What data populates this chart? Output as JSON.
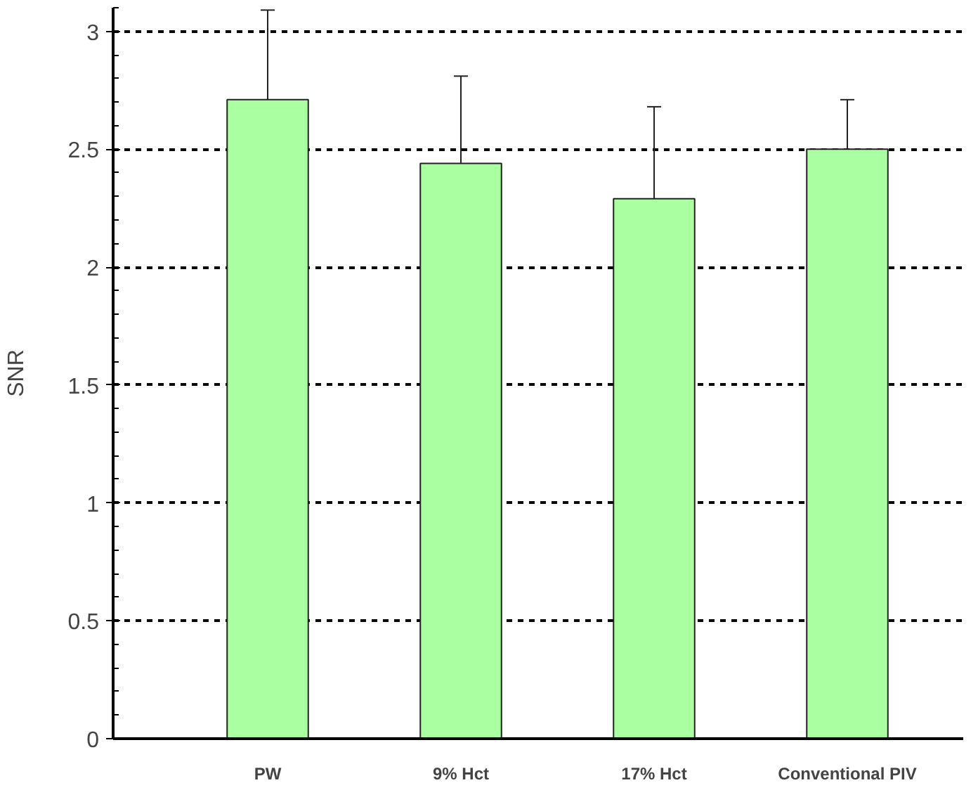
{
  "chart_data": {
    "type": "bar",
    "ylabel": "SNR",
    "categories": [
      "PW",
      "9% Hct",
      "17% Hct",
      "Conventional PIV"
    ],
    "series": [
      {
        "color": "#aaffa0",
        "values": [
          2.71,
          2.44,
          2.29,
          2.5
        ],
        "errors": [
          [
            2.71,
            3.09
          ],
          [
            2.44,
            2.81
          ],
          [
            2.29,
            2.68
          ],
          [
            2.5,
            2.71
          ]
        ]
      }
    ],
    "ylim": [
      0,
      3.1
    ],
    "yticks": [
      0,
      0.5,
      1,
      1.5,
      2,
      2.5,
      3
    ],
    "grid": "y"
  }
}
